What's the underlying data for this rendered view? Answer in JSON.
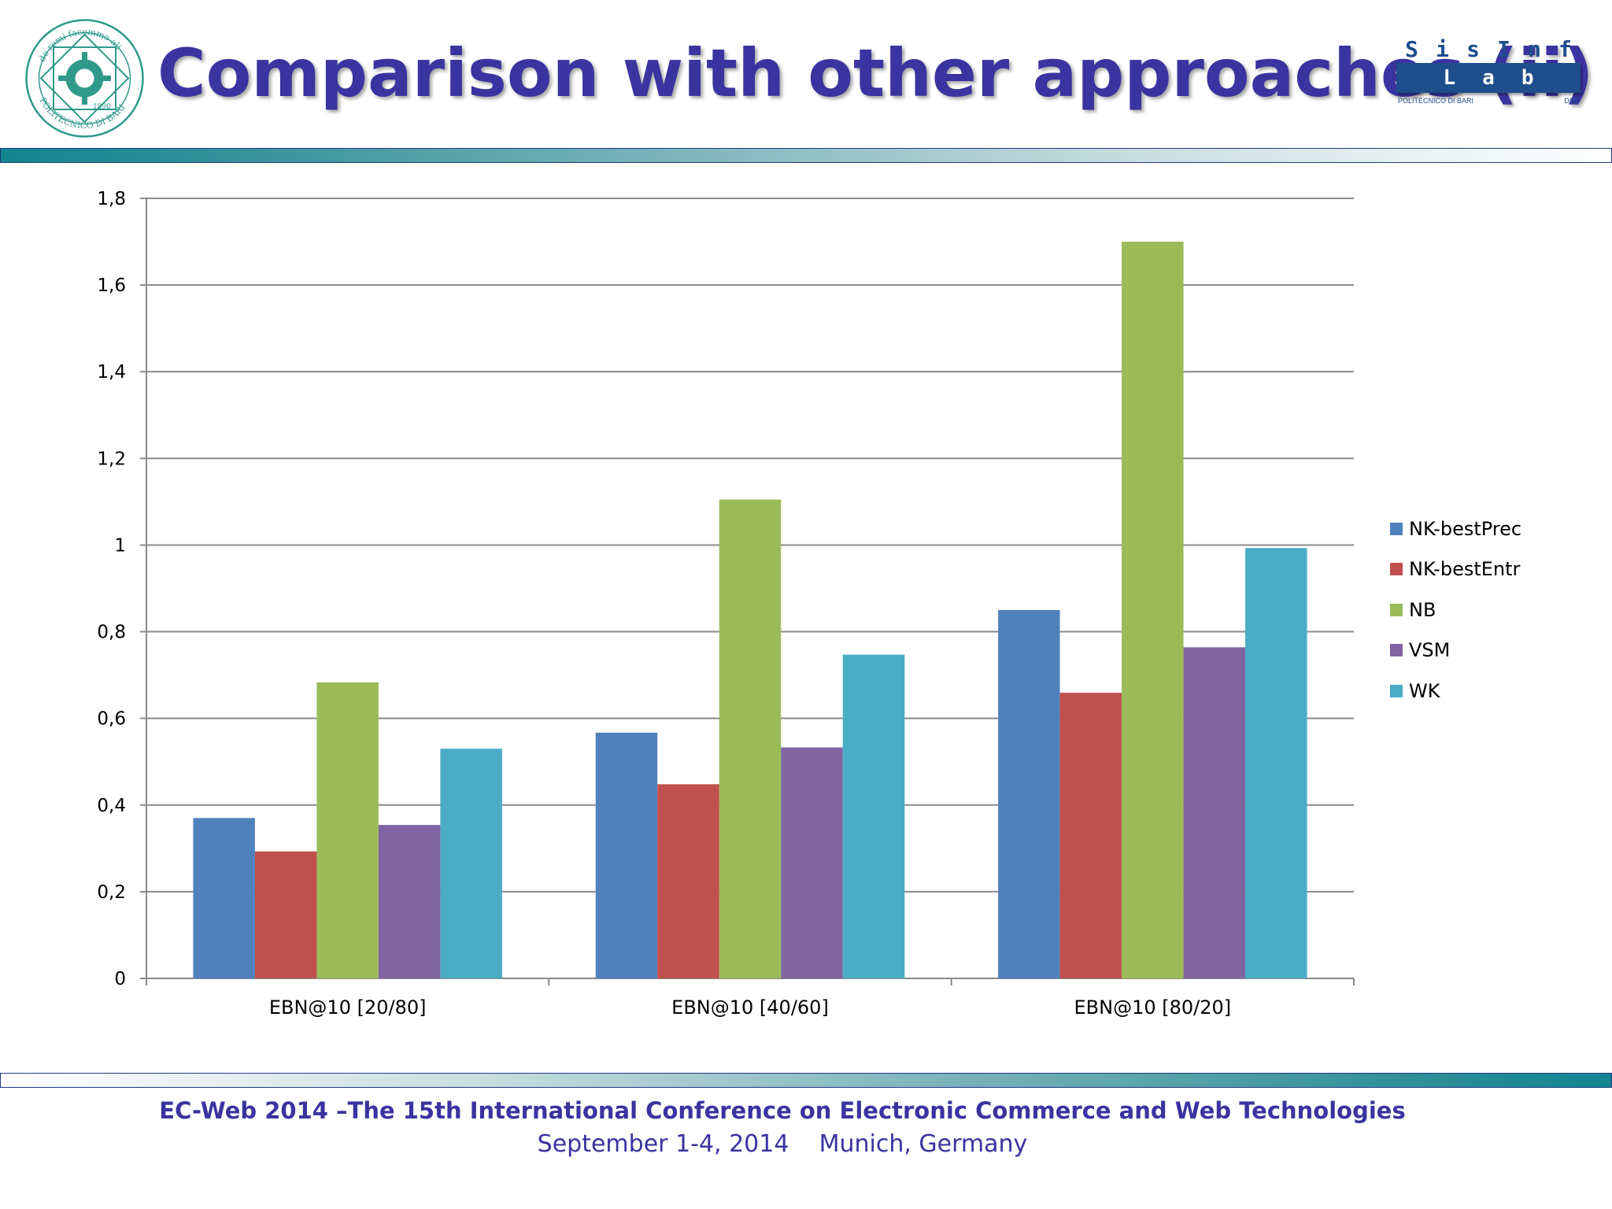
{
  "slide": {
    "title": "Comparison with other approaches (ii)",
    "seal": {
      "ring_text": "de remi facemmo ali",
      "bottom_text": "POLITECNICO DI BARI",
      "year": "1990"
    },
    "lab_logo": {
      "top": [
        "S",
        "i",
        "s",
        "I",
        "n",
        "f"
      ],
      "box": [
        "L",
        "a",
        "b"
      ],
      "sub": "POLITECNICO DI BARI",
      "dept": "DEE"
    },
    "footer": {
      "line1": "EC-Web 2014 –The 15th International Conference on Electronic Commerce and Web Technologies",
      "line2": "September 1-4, 2014    Munich, Germany"
    }
  },
  "chart_data": {
    "type": "bar",
    "categories": [
      "EBN@10 [20/80]",
      "EBN@10 [40/60]",
      "EBN@10 [80/20]"
    ],
    "series": [
      {
        "name": "NK-bestPrec",
        "color": "#4f81bd",
        "values": [
          0.37,
          0.567,
          0.85
        ]
      },
      {
        "name": "NK-bestEntr",
        "color": "#c0504d",
        "values": [
          0.293,
          0.448,
          0.659
        ]
      },
      {
        "name": "NB",
        "color": "#9bbb59",
        "values": [
          0.683,
          1.105,
          1.7
        ]
      },
      {
        "name": "VSM",
        "color": "#8064a2",
        "values": [
          0.354,
          0.533,
          0.764
        ]
      },
      {
        "name": "WK",
        "color": "#4bacc6",
        "values": [
          0.53,
          0.747,
          0.993
        ]
      }
    ],
    "y_ticks": [
      "0",
      "0,2",
      "0,4",
      "0,6",
      "0,8",
      "1",
      "1,2",
      "1,4",
      "1,6",
      "1,8"
    ],
    "ylim": [
      0,
      1.8
    ],
    "grid": true,
    "legend_position": "right"
  }
}
